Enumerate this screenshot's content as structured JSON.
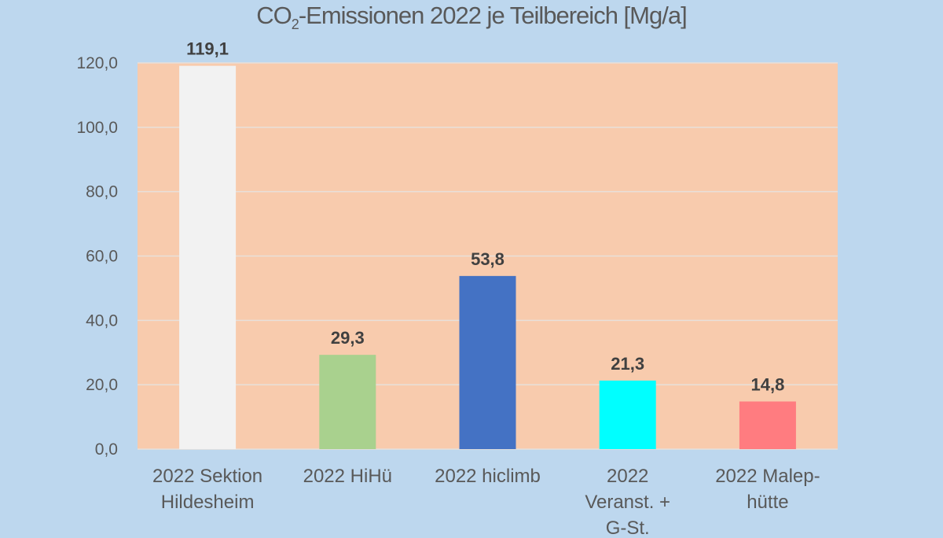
{
  "chart_data": {
    "type": "bar",
    "title_prefix": "CO",
    "title_sub": "2",
    "title_rest": "-Emissionen 2022 je Teilbereich [Mg/a]",
    "categories": [
      "2022 Sektion\nHildesheim",
      "2022 HiHü",
      "2022 hiclimb",
      "2022\nVeranst. +\nG-St.",
      "2022 Malep-\nhütte"
    ],
    "values": [
      119.1,
      29.3,
      53.8,
      21.3,
      14.8
    ],
    "data_labels": [
      "119,1",
      "29,3",
      "53,8",
      "21,3",
      "14,8"
    ],
    "bar_colors": [
      "#f2f2f2",
      "#a9d18e",
      "#4472c4",
      "#00ffff",
      "#ff7c80"
    ],
    "ylim": [
      0,
      120
    ],
    "yticks": [
      0,
      20,
      40,
      60,
      80,
      100,
      120
    ],
    "ytick_labels": [
      "0,0",
      "20,0",
      "40,0",
      "60,0",
      "80,0",
      "100,0",
      "120,0"
    ],
    "xlabel": "",
    "ylabel": "",
    "grid": true,
    "legend": "none",
    "background_color": "#bdd7ee",
    "plot_area_color": "#f8cbad"
  }
}
